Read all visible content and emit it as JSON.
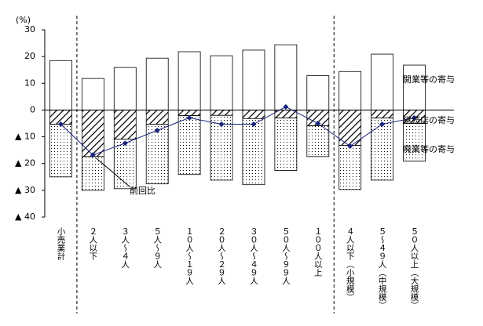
{
  "chart_data": {
    "type": "bar",
    "y_unit": "(%)",
    "categories": [
      "小売業計",
      "２人以下",
      "３人～４人",
      "５人～９人",
      "１０人～１９人",
      "２０人～２９人",
      "３０人～４９人",
      "５０人～９９人",
      "１００人以上",
      "４人以下（小規模）",
      "５～４９人（中規模）",
      "５０人以上（大規模）"
    ],
    "series": [
      {
        "name": "開業等の寄与",
        "color": "#ffffff",
        "style": "plain",
        "values": [
          18.5,
          11.8,
          15.9,
          19.4,
          21.8,
          20.3,
          22.4,
          24.4,
          12.9,
          14.4,
          20.9,
          16.8
        ]
      },
      {
        "name": "継続店の寄与",
        "color": "#000000",
        "style": "hatch",
        "values": [
          -5.3,
          -17.4,
          -10.9,
          -5.3,
          -2.1,
          -2.0,
          -3.2,
          -3.0,
          -5.9,
          -13.2,
          -3.0,
          -5.0
        ]
      },
      {
        "name": "廃業等の寄与",
        "color": "#000000",
        "style": "dots",
        "values": [
          -19.7,
          -12.6,
          -18.5,
          -22.3,
          -22.0,
          -24.2,
          -24.7,
          -19.6,
          -11.5,
          -16.5,
          -23.2,
          -14.1
        ]
      },
      {
        "name": "前回比",
        "color": "#1a237e",
        "style": "line",
        "values": [
          -5.3,
          -16.8,
          -12.4,
          -7.6,
          -2.9,
          -5.3,
          -5.3,
          1.2,
          -5.0,
          -13.5,
          -5.3,
          -2.9
        ]
      }
    ],
    "ylim": [
      -40,
      30
    ],
    "yticks": [
      30,
      20,
      10,
      0,
      {
        "value": -10,
        "label": "▲ 10"
      },
      {
        "value": -20,
        "label": "▲ 20"
      },
      {
        "value": -30,
        "label": "▲ 30"
      },
      {
        "value": -40,
        "label": "▲ 40"
      }
    ],
    "dividers_after": [
      0,
      8
    ]
  }
}
